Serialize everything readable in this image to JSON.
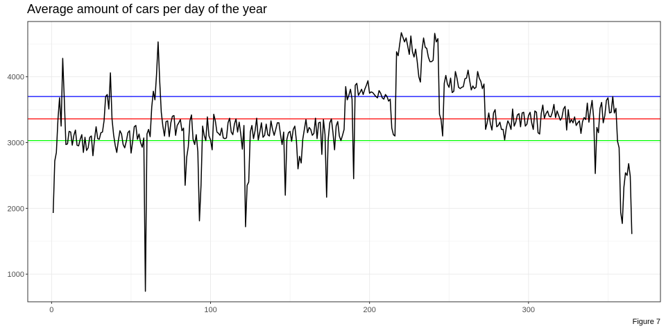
{
  "chart_data": {
    "type": "line",
    "title": "Average amount of cars per day of the year",
    "caption": "Figure 7",
    "xlabel": "",
    "ylabel": "",
    "xlim": [
      -15,
      383
    ],
    "ylim": [
      580,
      4840
    ],
    "x_ticks": [
      0,
      100,
      200,
      300
    ],
    "y_ticks": [
      1000,
      2000,
      3000,
      4000
    ],
    "grid": true,
    "reference_lines": [
      {
        "y": 3700,
        "color": "#0000ff"
      },
      {
        "y": 3360,
        "color": "#ff0000"
      },
      {
        "y": 3030,
        "color": "#00ff00"
      }
    ],
    "line_color": "#000000",
    "series": [
      {
        "x_start": 1,
        "values": [
          1930,
          2720,
          2850,
          3350,
          3680,
          3250,
          4280,
          3650,
          2970,
          2980,
          3170,
          3160,
          2960,
          3110,
          3190,
          2960,
          2950,
          3050,
          3120,
          2850,
          3080,
          2880,
          2920,
          3080,
          3100,
          2800,
          3050,
          3240,
          3060,
          3050,
          3150,
          3160,
          3330,
          3700,
          3730,
          3510,
          4060,
          3360,
          3120,
          2960,
          2850,
          3030,
          3180,
          3130,
          2970,
          2920,
          3020,
          3150,
          3180,
          2840,
          3020,
          3240,
          3260,
          3050,
          3130,
          3000,
          2930,
          3070,
          740,
          3130,
          3200,
          3090,
          3540,
          3780,
          3650,
          4030,
          4530,
          3940,
          3460,
          3250,
          3100,
          3320,
          3330,
          3090,
          3300,
          3400,
          3410,
          3110,
          3260,
          3300,
          3350,
          3180,
          3220,
          2350,
          2780,
          2940,
          3330,
          3420,
          3050,
          2970,
          3120,
          2860,
          1810,
          2350,
          3250,
          3110,
          3030,
          3390,
          3100,
          3040,
          2890,
          3430,
          3330,
          3160,
          3140,
          3110,
          3220,
          3070,
          3060,
          3070,
          3300,
          3370,
          3160,
          3120,
          3280,
          3360,
          3160,
          3310,
          3130,
          2900,
          3260,
          1720,
          2350,
          2400,
          3160,
          3260,
          3060,
          3180,
          3370,
          3040,
          3160,
          3300,
          3080,
          3110,
          3280,
          3120,
          3100,
          3330,
          3200,
          3110,
          3200,
          3300,
          3300,
          3120,
          2970,
          3160,
          2200,
          3050,
          3150,
          3170,
          3020,
          3200,
          3250,
          3030,
          2600,
          2790,
          2690,
          3050,
          3200,
          3350,
          3150,
          3230,
          3200,
          3110,
          3140,
          3370,
          3060,
          3300,
          3310,
          2820,
          3350,
          3120,
          2170,
          3050,
          3300,
          3360,
          3150,
          2890,
          3250,
          3320,
          3100,
          3030,
          3110,
          3200,
          3850,
          3650,
          3720,
          3810,
          3660,
          2450,
          3870,
          3900,
          3720,
          3760,
          3810,
          3730,
          3810,
          3870,
          3940,
          3750,
          3770,
          3760,
          3730,
          3700,
          3680,
          3790,
          3750,
          3680,
          3660,
          3730,
          3700,
          3630,
          3660,
          3220,
          3120,
          3100,
          4380,
          4320,
          4500,
          4670,
          4600,
          4530,
          4590,
          4470,
          4340,
          4620,
          4380,
          4300,
          4420,
          4230,
          4000,
          3920,
          4400,
          4590,
          4450,
          4430,
          4300,
          4230,
          4230,
          4250,
          4660,
          4530,
          4580,
          3430,
          3350,
          3100,
          3900,
          4020,
          3890,
          3840,
          3980,
          3760,
          3780,
          4080,
          3980,
          3840,
          3820,
          3840,
          3850,
          3970,
          3980,
          4100,
          3940,
          3800,
          3860,
          3820,
          3840,
          4080,
          3980,
          3930,
          3820,
          3890,
          3200,
          3300,
          3450,
          3290,
          3190,
          3450,
          3500,
          3240,
          3260,
          3310,
          3200,
          3200,
          3040,
          3220,
          3330,
          3280,
          3200,
          3510,
          3250,
          3310,
          3420,
          3440,
          3240,
          3450,
          3460,
          3250,
          3280,
          3410,
          3460,
          3300,
          3200,
          3480,
          3460,
          3150,
          3130,
          3440,
          3570,
          3370,
          3440,
          3480,
          3400,
          3390,
          3460,
          3580,
          3380,
          3480,
          3410,
          3340,
          3380,
          3510,
          3550,
          3190,
          3500,
          3300,
          3350,
          3300,
          3390,
          3260,
          3300,
          3330,
          3140,
          3320,
          3380,
          3350,
          3600,
          3310,
          3490,
          3640,
          3370,
          2530,
          3230,
          3150,
          3520,
          3610,
          3300,
          3410,
          3640,
          3680,
          3450,
          3460,
          3700,
          3450,
          3520,
          3020,
          2920,
          1940,
          1770,
          2320,
          2540,
          2500,
          2680,
          2490,
          1610
        ]
      }
    ]
  }
}
